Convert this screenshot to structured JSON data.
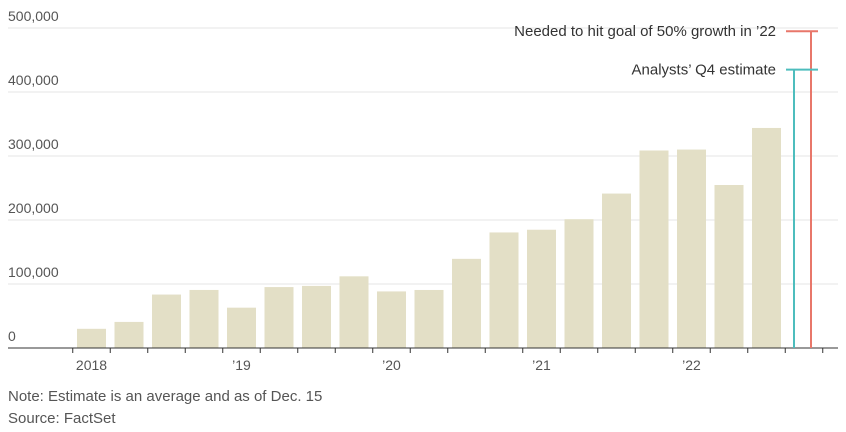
{
  "chart_data": {
    "type": "bar",
    "title": "",
    "xlabel": "",
    "ylabel": "",
    "ylim": [
      0,
      500000
    ],
    "yticks": [
      0,
      100000,
      200000,
      300000,
      400000,
      500000
    ],
    "ytick_labels": [
      "0",
      "100,000",
      "200,000",
      "300,000",
      "400,000",
      "500,000"
    ],
    "grid": true,
    "bar_color": "#e3dfc6",
    "categories": [
      "2018 Q1",
      "2018 Q2",
      "2018 Q3",
      "2018 Q4",
      "2019 Q1",
      "2019 Q2",
      "2019 Q3",
      "2019 Q4",
      "2020 Q1",
      "2020 Q2",
      "2020 Q3",
      "2020 Q4",
      "2021 Q1",
      "2021 Q2",
      "2021 Q3",
      "2021 Q4",
      "2022 Q1",
      "2022 Q2",
      "2022 Q3"
    ],
    "values": [
      29980,
      40740,
      83500,
      90700,
      63000,
      95200,
      97000,
      112000,
      88400,
      90650,
      139300,
      180570,
      184800,
      201250,
      241300,
      308600,
      310048,
      254695,
      343830
    ],
    "xtick_labels": [
      "2018",
      "’19",
      "’20",
      "’21",
      "’22"
    ],
    "xtick_at_index": [
      0.5,
      4.5,
      8.5,
      12.5,
      16.5
    ],
    "annotations": [
      {
        "label": "Needed to hit goal of 50% growth in ’22",
        "value": 495000,
        "color": "#e8776a"
      },
      {
        "label": "Analysts’ Q4 estimate",
        "value": 435000,
        "color": "#4dbdbd"
      }
    ]
  },
  "notes": {
    "line1": "Note: Estimate is an average and as of Dec. 15",
    "line2": "Source: FactSet"
  }
}
